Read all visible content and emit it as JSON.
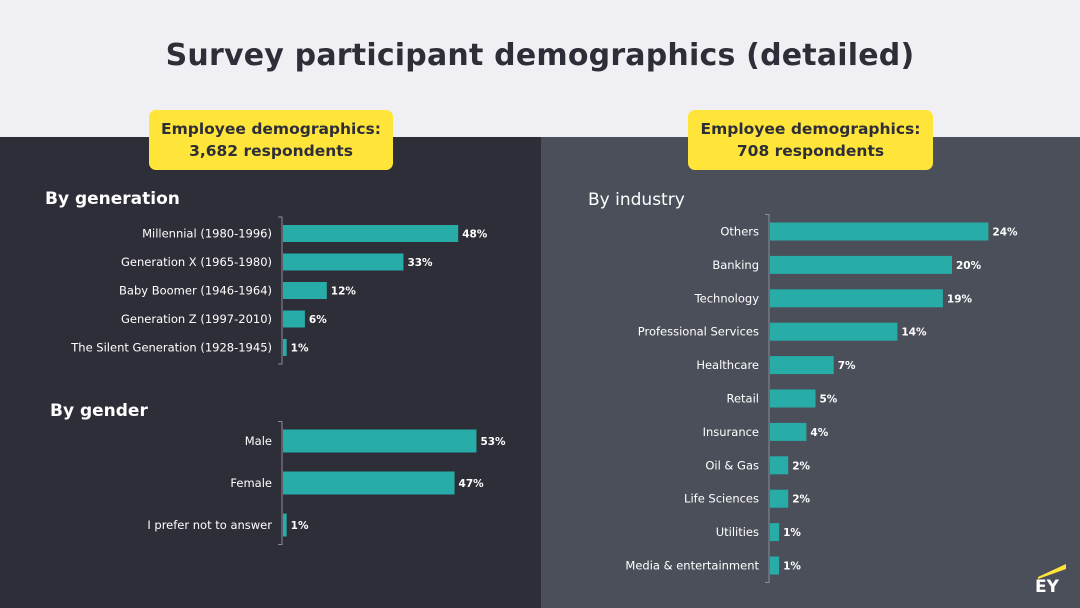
{
  "title": "Survey participant demographics (detailed)",
  "badges": {
    "left": {
      "line1": "Employee demographics:",
      "line2": "3,682 respondents"
    },
    "right": {
      "line1": "Employee demographics:",
      "line2": "708 respondents"
    }
  },
  "brand": {
    "logo_text": "EY",
    "accent": "#ffe53a",
    "bar_color": "#27aca8"
  },
  "chart_data": [
    {
      "type": "bar",
      "orientation": "horizontal",
      "title": "By generation",
      "categories": [
        "Millennial (1980-1996)",
        "Generation X (1965-1980)",
        "Baby Boomer (1946-1964)",
        "Generation Z (1997-2010)",
        "The Silent Generation (1928-1945)"
      ],
      "values": [
        48,
        33,
        12,
        6,
        1
      ],
      "labels": [
        "48%",
        "33%",
        "12%",
        "6%",
        "1%"
      ],
      "unit": "%",
      "xlim": [
        0,
        100
      ]
    },
    {
      "type": "bar",
      "orientation": "horizontal",
      "title": "By gender",
      "categories": [
        "Male",
        "Female",
        "I prefer not to answer"
      ],
      "values": [
        53,
        47,
        1
      ],
      "labels": [
        "53%",
        "47%",
        "1%"
      ],
      "unit": "%",
      "xlim": [
        0,
        100
      ]
    },
    {
      "type": "bar",
      "orientation": "horizontal",
      "title": "By industry",
      "categories": [
        "Others",
        "Banking",
        "Technology",
        "Professional Services",
        "Healthcare",
        "Retail",
        "Insurance",
        "Oil & Gas",
        "Life Sciences",
        "Utilities",
        "Media & entertainment"
      ],
      "values": [
        24,
        20,
        19,
        14,
        7,
        5,
        4,
        2,
        2,
        1,
        1
      ],
      "labels": [
        "24%",
        "20%",
        "19%",
        "14%",
        "7%",
        "5%",
        "4%",
        "2%",
        "2%",
        "1%",
        "1%"
      ],
      "unit": "%",
      "xlim": [
        0,
        100
      ]
    }
  ]
}
